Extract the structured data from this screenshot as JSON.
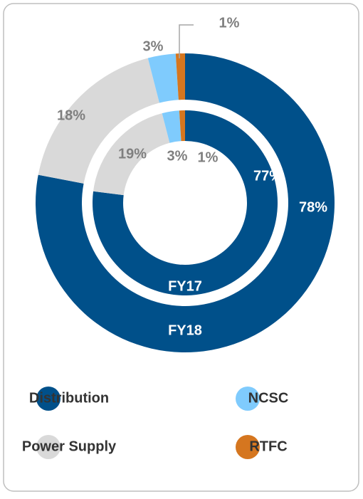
{
  "chart_data": {
    "type": "donut",
    "categories": [
      "Distribution",
      "Power Supply",
      "NCSC",
      "RTFC"
    ],
    "colors": [
      "#00508a",
      "#d9d9d9",
      "#7fcbfd",
      "#d5761f"
    ],
    "series": [
      {
        "name": "FY18",
        "values": [
          78,
          18,
          3,
          1
        ],
        "value_labels": [
          "78%",
          "18%",
          "3%",
          "1%"
        ]
      },
      {
        "name": "FY17",
        "values": [
          77,
          19,
          3,
          1
        ],
        "value_labels": [
          "77%",
          "19%",
          "3%",
          "1%"
        ]
      }
    ],
    "legend": "bottom"
  }
}
